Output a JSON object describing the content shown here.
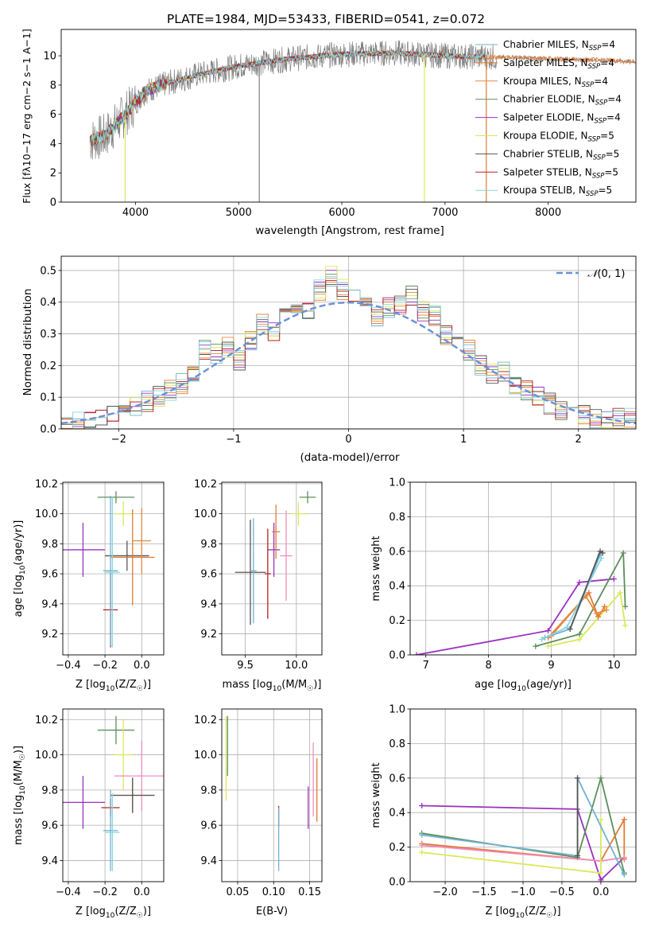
{
  "chart_data": [
    {
      "type": "line",
      "title": "PLATE=1984, MJD=53433, FIBERID=0541, z=0.072",
      "xlabel": "wavelength [Angstrom, rest frame]",
      "ylabel": "Flux [f$_\\lambda 10^{-17}$ erg cm$^{-2}$ s$^{-1}$ A$^{-1}$]",
      "ylabel_parts": [
        "Flux [f",
        "λ",
        "10",
        "−17",
        " erg cm",
        "−2",
        " s",
        "−1",
        " A",
        "−1",
        "]"
      ],
      "xlim": [
        3280,
        8850
      ],
      "ylim": [
        0,
        11.8
      ],
      "xticks": [
        4000,
        5000,
        6000,
        7000,
        8000
      ],
      "yticks": [
        0,
        2,
        4,
        6,
        8,
        10
      ],
      "grid": false,
      "legend_position": "upper right",
      "data_wavelength_range": [
        3560,
        8850
      ],
      "observed_spectrum_color": "#808080",
      "spikes": [
        {
          "x": 3900,
          "ymin": 0,
          "color": "#dbe85a"
        },
        {
          "x": 5200,
          "ymin": 0,
          "color": "#808080"
        },
        {
          "x": 6800,
          "ymin": 0,
          "color": "#dbe85a"
        },
        {
          "x": 7400,
          "ymin": 0,
          "color": "#e37a33"
        }
      ],
      "continuum_anchors": {
        "x": [
          3560,
          3700,
          3850,
          4000,
          4100,
          4300,
          4600,
          5000,
          5500,
          6000,
          6500,
          7000,
          7500,
          8000,
          8500,
          8850
        ],
        "y": [
          4.2,
          4.5,
          5.6,
          6.8,
          7.6,
          8.1,
          8.7,
          9.3,
          9.8,
          10.1,
          10.2,
          10.0,
          9.9,
          9.8,
          9.7,
          9.6
        ]
      },
      "series": [
        {
          "name": "Chabrier MILES, N$_{SSP}$=4",
          "label_main": "Chabrier MILES, N",
          "label_sub": "SSP",
          "label_tail": "=4",
          "color": "#72b2cf"
        },
        {
          "name": "Salpeter MILES, N$_{SSP}$=4",
          "label_main": "Salpeter MILES, N",
          "label_sub": "SSP",
          "label_tail": "=4",
          "color": "#e37a33"
        },
        {
          "name": "Kroupa MILES, N$_{SSP}$=4",
          "label_main": "Kroupa MILES, N",
          "label_sub": "SSP",
          "label_tail": "=4",
          "color": "#e58b40"
        },
        {
          "name": "Chabrier ELODIE, N$_{SSP}$=4",
          "label_main": "Chabrier ELODIE, N",
          "label_sub": "SSP",
          "label_tail": "=4",
          "color": "#5c8f5a"
        },
        {
          "name": "Salpeter ELODIE, N$_{SSP}$=4",
          "label_main": "Salpeter ELODIE, N",
          "label_sub": "SSP",
          "label_tail": "=4",
          "color": "#9b30c0"
        },
        {
          "name": "Kroupa ELODIE, N$_{SSP}$=5",
          "label_main": "Kroupa ELODIE, N",
          "label_sub": "SSP",
          "label_tail": "=5",
          "color": "#dbe85a"
        },
        {
          "name": "Chabrier STELIB, N$_{SSP}$=5",
          "label_main": "Chabrier STELIB, N",
          "label_sub": "SSP",
          "label_tail": "=5",
          "color": "#555555"
        },
        {
          "name": "Salpeter STELIB, N$_{SSP}$=5",
          "label_main": "Salpeter STELIB, N",
          "label_sub": "SSP",
          "label_tail": "=5",
          "color": "#b22222"
        },
        {
          "name": "Kroupa STELIB, N$_{SSP}$=5",
          "label_main": "Kroupa STELIB, N",
          "label_sub": "SSP",
          "label_tail": "=5",
          "color": "#87d5e0"
        }
      ]
    },
    {
      "type": "histogram",
      "xlabel": "(data-model)/error",
      "ylabel": "Normed distribution",
      "xlim": [
        -2.5,
        2.5
      ],
      "ylim": [
        0,
        0.545
      ],
      "xticks": [
        -2,
        -1,
        0,
        1,
        2
      ],
      "yticks": [
        0.0,
        0.1,
        0.2,
        0.3,
        0.4,
        0.5
      ],
      "grid": true,
      "legend_position": "upper right",
      "reference_curve": {
        "name": "𝒩(0,1)",
        "label_main": "𝒩",
        "label_args": "(0, 1)",
        "mean": 0,
        "sigma": 1,
        "color": "#6a8fd8",
        "style": "dashed"
      },
      "bin_width": 0.1,
      "bin_centers": [
        -2.45,
        -2.35,
        -2.25,
        -2.15,
        -2.05,
        -1.95,
        -1.85,
        -1.75,
        -1.65,
        -1.55,
        -1.45,
        -1.35,
        -1.25,
        -1.15,
        -1.05,
        -0.95,
        -0.85,
        -0.75,
        -0.65,
        -0.55,
        -0.45,
        -0.35,
        -0.25,
        -0.15,
        -0.05,
        0.05,
        0.15,
        0.25,
        0.35,
        0.45,
        0.55,
        0.65,
        0.75,
        0.85,
        0.95,
        1.05,
        1.15,
        1.25,
        1.35,
        1.45,
        1.55,
        1.65,
        1.75,
        1.85,
        1.95,
        2.05,
        2.15,
        2.25,
        2.35,
        2.45
      ],
      "bin_values": [
        0.01,
        0.02,
        0.02,
        0.03,
        0.04,
        0.06,
        0.07,
        0.09,
        0.1,
        0.12,
        0.14,
        0.17,
        0.25,
        0.24,
        0.26,
        0.22,
        0.28,
        0.33,
        0.3,
        0.4,
        0.37,
        0.38,
        0.44,
        0.48,
        0.44,
        0.43,
        0.4,
        0.36,
        0.38,
        0.39,
        0.42,
        0.37,
        0.36,
        0.3,
        0.28,
        0.25,
        0.2,
        0.17,
        0.18,
        0.14,
        0.12,
        0.1,
        0.08,
        0.06,
        0.05,
        0.04,
        0.03,
        0.02,
        0.03,
        0.03
      ],
      "series_colors": [
        "#72b2cf",
        "#e37a33",
        "#e58b40",
        "#5c8f5a",
        "#9b30c0",
        "#dbe85a",
        "#555555",
        "#b22222",
        "#87d5e0"
      ]
    },
    {
      "type": "errorbar",
      "xlabel": "Z [log$_{10}$(Z/Z$_\\odot$)]",
      "ylabel": "age  [log$_{10}$(age/yr)]",
      "xlim": [
        -0.43,
        0.12
      ],
      "ylim": [
        9.06,
        10.21
      ],
      "xticks": [
        -0.4,
        -0.2,
        0.0
      ],
      "yticks": [
        9.2,
        9.4,
        9.6,
        9.8,
        10.0,
        10.2
      ],
      "grid": true,
      "points": [
        {
          "x": -0.14,
          "xerr": 0.1,
          "y": 10.11,
          "yerr": 0.04,
          "color": "#5c8f5a"
        },
        {
          "x": -0.1,
          "xerr": 0.05,
          "y": 10.0,
          "yerr": 0.08,
          "color": "#dbe85a"
        },
        {
          "x": -0.32,
          "xerr": 0.12,
          "y": 9.76,
          "yerr": 0.18,
          "color": "#9b30c0"
        },
        {
          "x": -0.08,
          "xerr": 0.12,
          "y": 9.72,
          "yerr": 0.1,
          "color": "#555555"
        },
        {
          "x": 0.0,
          "xerr": 0.05,
          "y": 9.82,
          "yerr": 0.22,
          "color": "#e58b40"
        },
        {
          "x": -0.05,
          "xerr": 0.12,
          "y": 9.71,
          "yerr": 0.32,
          "color": "#e37a33"
        },
        {
          "x": -0.17,
          "xerr": 0.04,
          "y": 9.36,
          "yerr": 0.25,
          "color": "#b22222"
        },
        {
          "x": -0.17,
          "xerr": 0.04,
          "y": 9.62,
          "yerr": 0.5,
          "color": "#72b2cf"
        },
        {
          "x": -0.16,
          "xerr": 0.04,
          "y": 9.61,
          "yerr": 0.5,
          "color": "#87d5e0"
        }
      ]
    },
    {
      "type": "errorbar",
      "xlabel": "mass [log$_{10}$(M/M$_\\odot$)]",
      "ylabel": "",
      "xlim": [
        9.27,
        10.25
      ],
      "ylim": [
        9.06,
        10.21
      ],
      "xticks": [
        9.5,
        10.0
      ],
      "yticks": [
        9.2,
        9.4,
        9.6,
        9.8,
        10.0,
        10.2
      ],
      "grid": true,
      "points": [
        {
          "x": 10.11,
          "xerr": 0.08,
          "y": 10.11,
          "yerr": 0.04,
          "color": "#5c8f5a"
        },
        {
          "x": 10.02,
          "xerr": 0.08,
          "y": 10.0,
          "yerr": 0.08,
          "color": "#dbe85a"
        },
        {
          "x": 9.78,
          "xerr": 0.06,
          "y": 9.76,
          "yerr": 0.18,
          "color": "#9b30c0"
        },
        {
          "x": 9.9,
          "xerr": 0.06,
          "y": 9.72,
          "yerr": 0.3,
          "color": "#f08cbf"
        },
        {
          "x": 9.8,
          "xerr": 0.04,
          "y": 9.88,
          "yerr": 0.18,
          "color": "#e37a33"
        },
        {
          "x": 9.72,
          "xerr": 0.03,
          "y": 9.6,
          "yerr": 0.3,
          "color": "#b22222"
        },
        {
          "x": 9.55,
          "xerr": 0.15,
          "y": 9.61,
          "yerr": 0.35,
          "color": "#555555"
        },
        {
          "x": 9.58,
          "xerr": 0.03,
          "y": 9.62,
          "yerr": 0.35,
          "color": "#72b2cf"
        }
      ]
    },
    {
      "type": "line",
      "xlabel": "age  [log$_{10}$(age/yr)]",
      "ylabel": "mass weight",
      "xlim": [
        6.75,
        10.35
      ],
      "ylim": [
        0,
        1
      ],
      "xticks": [
        7,
        8,
        9,
        10
      ],
      "yticks": [
        0.0,
        0.2,
        0.4,
        0.6,
        0.8,
        1.0
      ],
      "grid": true,
      "series": [
        {
          "color": "#9b30c0",
          "x": [
            6.85,
            8.95,
            9.45,
            10.0
          ],
          "y": [
            0.0,
            0.14,
            0.42,
            0.44
          ]
        },
        {
          "color": "#5c8f5a",
          "x": [
            8.75,
            9.45,
            10.15,
            10.18
          ],
          "y": [
            0.05,
            0.12,
            0.59,
            0.28
          ]
        },
        {
          "color": "#dbe85a",
          "x": [
            8.95,
            9.45,
            10.1,
            10.18
          ],
          "y": [
            0.05,
            0.09,
            0.36,
            0.17
          ]
        },
        {
          "color": "#e37a33",
          "x": [
            8.95,
            9.6,
            9.75,
            9.85
          ],
          "y": [
            0.1,
            0.36,
            0.22,
            0.28
          ]
        },
        {
          "color": "#e58b40",
          "x": [
            9.0,
            9.55,
            9.72,
            9.88
          ],
          "y": [
            0.11,
            0.34,
            0.24,
            0.26
          ]
        },
        {
          "color": "#72b2cf",
          "x": [
            8.9,
            9.3,
            9.78
          ],
          "y": [
            0.1,
            0.15,
            0.58
          ]
        },
        {
          "color": "#87d5e0",
          "x": [
            8.85,
            9.25,
            9.8
          ],
          "y": [
            0.09,
            0.16,
            0.56
          ]
        },
        {
          "color": "#555555",
          "x": [
            9.3,
            9.78,
            9.82
          ],
          "y": [
            0.15,
            0.6,
            0.59
          ]
        }
      ]
    },
    {
      "type": "errorbar",
      "xlabel": "Z [log$_{10}$(Z/Z$_\\odot$)]",
      "ylabel": "mass [log$_{10}$(M/M$_\\odot$)]",
      "xlim": [
        -0.43,
        0.12
      ],
      "ylim": [
        9.28,
        10.26
      ],
      "xticks": [
        -0.4,
        -0.2,
        0.0
      ],
      "yticks": [
        9.4,
        9.6,
        9.8,
        10.0,
        10.2
      ],
      "grid": true,
      "points": [
        {
          "x": -0.14,
          "xerr": 0.1,
          "y": 10.14,
          "yerr": 0.08,
          "color": "#5c8f5a"
        },
        {
          "x": -0.1,
          "xerr": 0.05,
          "y": 10.0,
          "yerr": 0.2,
          "color": "#dbe85a"
        },
        {
          "x": 0.0,
          "xerr": 0.15,
          "y": 9.88,
          "yerr": 0.2,
          "color": "#f08cbf"
        },
        {
          "x": -0.05,
          "xerr": 0.12,
          "y": 9.77,
          "yerr": 0.1,
          "color": "#e58b40"
        },
        {
          "x": -0.05,
          "xerr": 0.12,
          "y": 9.77,
          "yerr": 0.1,
          "color": "#555555"
        },
        {
          "x": -0.32,
          "xerr": 0.12,
          "y": 9.73,
          "yerr": 0.15,
          "color": "#9b30c0"
        },
        {
          "x": -0.17,
          "xerr": 0.05,
          "y": 9.7,
          "yerr": 0.05,
          "color": "#b22222"
        },
        {
          "x": -0.17,
          "xerr": 0.04,
          "y": 9.57,
          "yerr": 0.23,
          "color": "#72b2cf"
        },
        {
          "x": -0.16,
          "xerr": 0.04,
          "y": 9.56,
          "yerr": 0.22,
          "color": "#87d5e0"
        }
      ]
    },
    {
      "type": "errorbar",
      "xlabel": "E(B-V)",
      "ylabel": "",
      "xlim": [
        0.028,
        0.167
      ],
      "ylim": [
        9.28,
        10.26
      ],
      "xticks": [
        0.05,
        0.1,
        0.15
      ],
      "yticks": [
        9.4,
        9.6,
        9.8,
        10.0,
        10.2
      ],
      "grid": true,
      "points": [
        {
          "x": 0.036,
          "yerr": 0.17,
          "y": 10.05,
          "color": "#5c8f5a"
        },
        {
          "x": 0.034,
          "yerr": 0.24,
          "y": 9.98,
          "color": "#dbe85a"
        },
        {
          "x": 0.107,
          "yerr": 0.06,
          "y": 9.65,
          "color": "#b22222"
        },
        {
          "x": 0.107,
          "yerr": 0.18,
          "y": 9.52,
          "color": "#72b2cf"
        },
        {
          "x": 0.148,
          "yerr": 0.12,
          "y": 9.7,
          "color": "#9b30c0"
        },
        {
          "x": 0.155,
          "yerr": 0.21,
          "y": 9.86,
          "color": "#f08cbf"
        },
        {
          "x": 0.16,
          "yerr": 0.18,
          "y": 9.8,
          "color": "#e37a33"
        }
      ]
    },
    {
      "type": "line",
      "xlabel": "Z [log$_{10}$(Z/Z$_\\odot$)]",
      "ylabel": "mass weight",
      "xlim": [
        -2.45,
        0.45
      ],
      "ylim": [
        0,
        1
      ],
      "xticks": [
        -2.0,
        -1.5,
        -1.0,
        -0.5,
        0.0
      ],
      "yticks": [
        0.0,
        0.2,
        0.4,
        0.6,
        0.8,
        1.0
      ],
      "grid": true,
      "series": [
        {
          "color": "#9b30c0",
          "x": [
            -2.3,
            -0.3,
            0.0,
            0.3
          ],
          "y": [
            0.44,
            0.42,
            0.01,
            0.14
          ]
        },
        {
          "color": "#5c8f5a",
          "x": [
            -2.3,
            -0.3,
            0.0,
            0.3
          ],
          "y": [
            0.28,
            0.14,
            0.6,
            0.05
          ]
        },
        {
          "color": "#e37a33",
          "x": [
            -2.3,
            0.0,
            0.3,
            0.3
          ],
          "y": [
            0.22,
            0.12,
            0.36,
            0.13
          ]
        },
        {
          "color": "#f08cbf",
          "x": [
            -2.3,
            0.0,
            0.3
          ],
          "y": [
            0.21,
            0.12,
            0.14
          ]
        },
        {
          "color": "#dbe85a",
          "x": [
            -2.3,
            0.0,
            0.0
          ],
          "y": [
            0.17,
            0.05,
            0.36
          ]
        },
        {
          "color": "#72b2cf",
          "x": [
            -2.3,
            -0.3,
            -0.3,
            0.3
          ],
          "y": [
            0.27,
            0.15,
            0.6,
            0.04
          ]
        },
        {
          "color": "#555555",
          "x": [
            -0.3,
            -0.3
          ],
          "y": [
            0.6,
            0.15
          ]
        }
      ]
    }
  ]
}
